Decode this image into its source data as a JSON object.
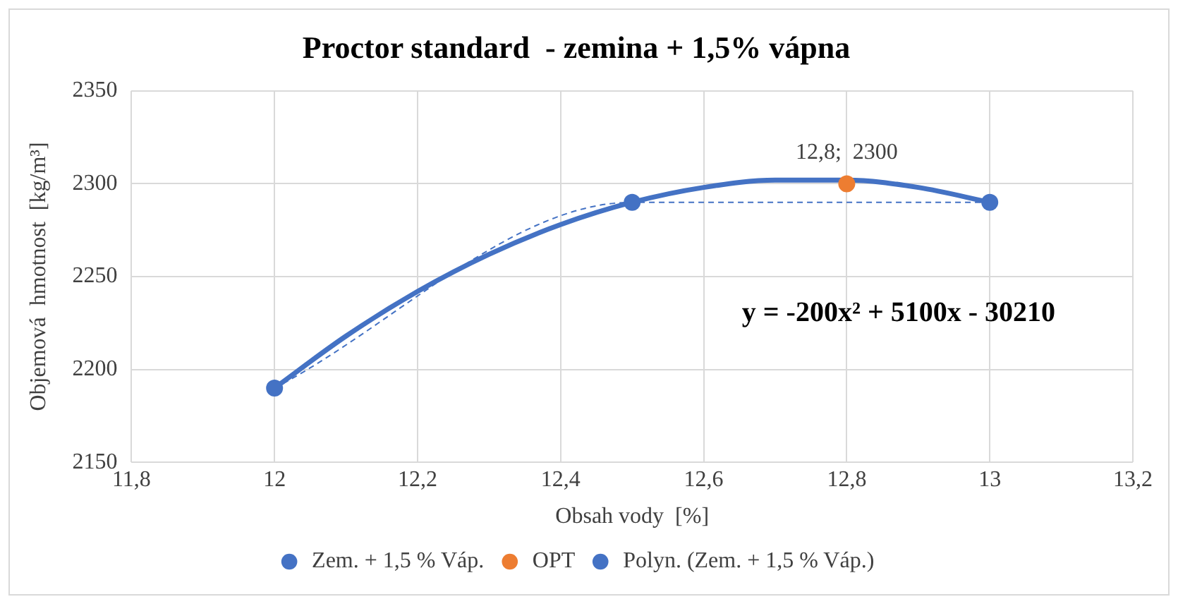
{
  "chart_data": {
    "type": "scatter",
    "title": "Proctor standard  - zemina + 1,5% vápna",
    "xlabel": "Obsah vody  [%]",
    "ylabel": "Objemová  hmotnost  [kg/m³]",
    "xlim": [
      11.8,
      13.2
    ],
    "xticks": [
      {
        "value": 11.8,
        "label": "11,8"
      },
      12,
      {
        "value": 12.2,
        "label": "12,2"
      },
      {
        "value": 12.4,
        "label": "12,4"
      },
      {
        "value": 12.6,
        "label": "12,6"
      },
      {
        "value": 12.8,
        "label": "12,8"
      },
      13,
      {
        "value": 13.2,
        "label": "13,2"
      }
    ],
    "ylim": [
      2150,
      2350
    ],
    "yticks": [
      2150,
      2200,
      2250,
      2300,
      2350
    ],
    "grid": true,
    "legend": "bottom",
    "annotations": [
      "y = -200x² + 5100x - 30210"
    ],
    "series": [
      {
        "name": "Zem. + 1,5 % Váp.",
        "type": "line",
        "color": "#4472c4",
        "marker": "circle",
        "line_style": "dashed",
        "x": [
          12,
          12.5,
          13
        ],
        "values": [
          2190,
          2290,
          2290
        ]
      },
      {
        "name": "OPT",
        "type": "scatter",
        "color": "#ed7d31",
        "marker": "circle",
        "x": [
          12.8
        ],
        "values": [
          2300
        ],
        "value_labels": [
          "12,8;  2300"
        ]
      },
      {
        "name": "Polyn. (Zem. + 1,5 % Váp.)",
        "type": "line",
        "color": "#4472c4",
        "marker": "none",
        "line_style": "solid",
        "x": [
          12,
          12.1,
          12.2,
          12.3,
          12.4,
          12.5,
          12.6,
          12.7,
          12.8,
          12.9,
          13
        ],
        "values": [
          2190,
          2218,
          2242,
          2262,
          2278,
          2290,
          2298,
          2302,
          2302,
          2298,
          2290
        ]
      }
    ]
  }
}
